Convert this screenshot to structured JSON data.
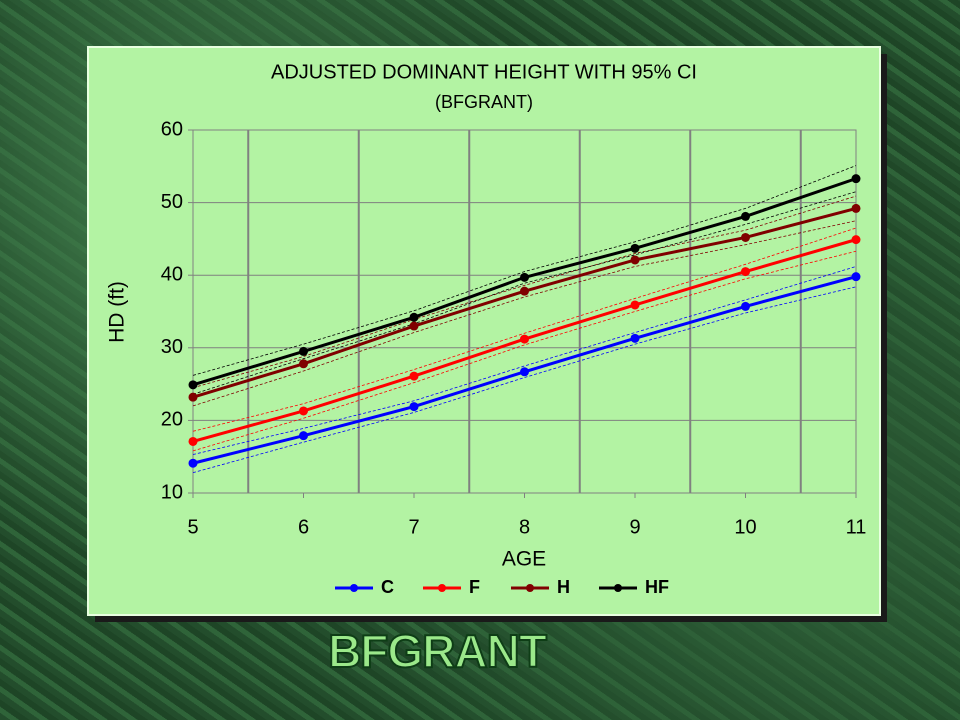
{
  "slide_title": "BFGRANT",
  "chart_data": {
    "type": "line",
    "title": "ADJUSTED DOMINANT HEIGHT WITH 95% CI",
    "subtitle": "(BFGRANT)",
    "x_label": "AGE",
    "y_label": "HD (ft)",
    "x": [
      5,
      6,
      7,
      8,
      9,
      10,
      11
    ],
    "xlim": [
      5,
      11
    ],
    "xticks": [
      5,
      6,
      7,
      8,
      9,
      10,
      11
    ],
    "ylim": [
      10,
      60
    ],
    "yticks": [
      10,
      20,
      30,
      40,
      50,
      60
    ],
    "grid": true,
    "series": [
      {
        "name": "C",
        "color": "#0000ff",
        "values": [
          14.1,
          17.9,
          21.9,
          26.7,
          31.3,
          35.7,
          39.8
        ],
        "ci_lower": [
          12.8,
          17.0,
          21.1,
          25.9,
          30.5,
          34.8,
          38.4
        ],
        "ci_upper": [
          15.3,
          18.9,
          22.7,
          27.5,
          32.1,
          36.6,
          41.2
        ]
      },
      {
        "name": "F",
        "color": "#ff0000",
        "values": [
          17.1,
          21.3,
          26.1,
          31.2,
          35.9,
          40.5,
          44.9
        ],
        "ci_lower": [
          15.8,
          20.3,
          25.2,
          30.4,
          35.0,
          39.5,
          43.3
        ],
        "ci_upper": [
          18.5,
          22.3,
          27.0,
          32.0,
          36.8,
          41.5,
          46.5
        ]
      },
      {
        "name": "H",
        "color": "#800000",
        "values": [
          23.2,
          27.8,
          33.0,
          37.8,
          42.1,
          45.2,
          49.2
        ],
        "ci_lower": [
          22.0,
          26.8,
          32.1,
          37.0,
          41.2,
          44.2,
          47.5
        ],
        "ci_upper": [
          24.5,
          28.8,
          33.9,
          38.6,
          43.0,
          46.2,
          50.9
        ]
      },
      {
        "name": "HF",
        "color": "#000000",
        "values": [
          24.9,
          29.5,
          34.2,
          39.7,
          43.7,
          48.1,
          53.3
        ],
        "ci_lower": [
          23.6,
          28.5,
          33.3,
          38.9,
          42.8,
          47.0,
          51.5
        ],
        "ci_upper": [
          26.2,
          30.5,
          35.1,
          40.5,
          44.6,
          49.2,
          55.1
        ]
      }
    ]
  }
}
